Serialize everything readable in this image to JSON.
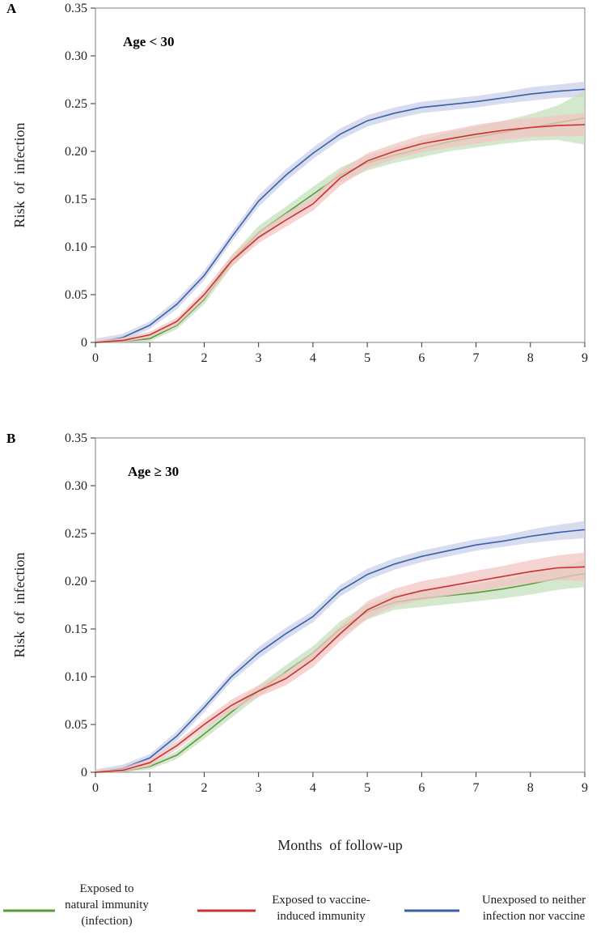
{
  "chart_data": [
    {
      "type": "line",
      "panel_label": "A",
      "annotation": "Age < 30",
      "xlabel": "",
      "ylabel": "Risk  of  infection",
      "xlim": [
        0,
        9
      ],
      "ylim": [
        0,
        0.35
      ],
      "xticks": [
        "0",
        "1",
        "2",
        "3",
        "4",
        "5",
        "6",
        "7",
        "8",
        "9"
      ],
      "yticks": [
        "0",
        "0.05",
        "0.10",
        "0.15",
        "0.20",
        "0.25",
        "0.30",
        "0.35"
      ],
      "x": [
        0,
        0.5,
        1,
        1.5,
        2,
        2.5,
        3,
        3.5,
        4,
        4.5,
        5,
        5.5,
        6,
        6.5,
        7,
        7.5,
        8,
        8.5,
        9
      ],
      "series": [
        {
          "name": "Unexposed to neither infection nor vaccine",
          "color": "#3a5ea8",
          "band": "#c9d2ea",
          "values": [
            0,
            0.005,
            0.018,
            0.04,
            0.07,
            0.11,
            0.148,
            0.175,
            0.198,
            0.218,
            0.232,
            0.24,
            0.246,
            0.249,
            0.252,
            0.256,
            0.26,
            0.263,
            0.265
          ],
          "ci": [
            0.004,
            0.004,
            0.004,
            0.005,
            0.005,
            0.005,
            0.006,
            0.006,
            0.006,
            0.006,
            0.006,
            0.006,
            0.006,
            0.006,
            0.006,
            0.006,
            0.007,
            0.007,
            0.008
          ]
        },
        {
          "name": "Exposed to natural immunity (infection)",
          "color": "#5a9a3a",
          "band": "#c6e0bd",
          "values": [
            0,
            0.001,
            0.004,
            0.018,
            0.045,
            0.085,
            0.115,
            0.135,
            0.155,
            0.175,
            0.188,
            0.196,
            0.203,
            0.21,
            0.215,
            0.22,
            0.225,
            0.23,
            0.235
          ],
          "ci": [
            0.002,
            0.002,
            0.003,
            0.004,
            0.005,
            0.006,
            0.007,
            0.007,
            0.008,
            0.008,
            0.008,
            0.008,
            0.009,
            0.01,
            0.011,
            0.012,
            0.014,
            0.018,
            0.028
          ]
        },
        {
          "name": "Exposed to vaccine-induced immunity",
          "color": "#c83232",
          "band": "#f1c6c3",
          "values": [
            0,
            0.002,
            0.008,
            0.022,
            0.05,
            0.085,
            0.11,
            0.128,
            0.145,
            0.172,
            0.19,
            0.2,
            0.208,
            0.213,
            0.218,
            0.222,
            0.225,
            0.227,
            0.228
          ],
          "ci": [
            0.002,
            0.003,
            0.003,
            0.004,
            0.005,
            0.006,
            0.006,
            0.007,
            0.007,
            0.008,
            0.008,
            0.008,
            0.009,
            0.009,
            0.01,
            0.01,
            0.01,
            0.011,
            0.012
          ]
        }
      ]
    },
    {
      "type": "line",
      "panel_label": "B",
      "annotation": "Age ≥ 30",
      "xlabel": "Months  of follow-up",
      "ylabel": "Risk  of  infection",
      "xlim": [
        0,
        9
      ],
      "ylim": [
        0,
        0.35
      ],
      "xticks": [
        "0",
        "1",
        "2",
        "3",
        "4",
        "5",
        "6",
        "7",
        "8",
        "9"
      ],
      "yticks": [
        "0",
        "0.05",
        "0.10",
        "0.15",
        "0.20",
        "0.25",
        "0.30",
        "0.35"
      ],
      "x": [
        0,
        0.5,
        1,
        1.5,
        2,
        2.5,
        3,
        3.5,
        4,
        4.5,
        5,
        5.5,
        6,
        6.5,
        7,
        7.5,
        8,
        8.5,
        9
      ],
      "series": [
        {
          "name": "Unexposed to neither infection nor vaccine",
          "color": "#3a5ea8",
          "band": "#c9d2ea",
          "values": [
            0,
            0.004,
            0.015,
            0.038,
            0.068,
            0.1,
            0.125,
            0.145,
            0.163,
            0.19,
            0.207,
            0.218,
            0.226,
            0.232,
            0.238,
            0.242,
            0.247,
            0.251,
            0.254
          ],
          "ci": [
            0.003,
            0.004,
            0.004,
            0.005,
            0.005,
            0.005,
            0.006,
            0.006,
            0.006,
            0.006,
            0.006,
            0.006,
            0.006,
            0.006,
            0.006,
            0.006,
            0.007,
            0.008,
            0.009
          ]
        },
        {
          "name": "Exposed to natural immunity (infection)",
          "color": "#5a9a3a",
          "band": "#c6e0bd",
          "values": [
            0,
            0.001,
            0.006,
            0.018,
            0.04,
            0.063,
            0.085,
            0.105,
            0.125,
            0.15,
            0.168,
            0.178,
            0.182,
            0.185,
            0.188,
            0.192,
            0.197,
            0.203,
            0.208
          ],
          "ci": [
            0.002,
            0.002,
            0.003,
            0.004,
            0.005,
            0.006,
            0.006,
            0.007,
            0.007,
            0.008,
            0.008,
            0.008,
            0.009,
            0.009,
            0.009,
            0.01,
            0.011,
            0.012,
            0.014
          ]
        },
        {
          "name": "Exposed to vaccine-induced immunity",
          "color": "#c83232",
          "band": "#f1c6c3",
          "values": [
            0,
            0.002,
            0.01,
            0.028,
            0.05,
            0.07,
            0.085,
            0.098,
            0.118,
            0.145,
            0.17,
            0.183,
            0.19,
            0.195,
            0.2,
            0.205,
            0.21,
            0.214,
            0.215
          ],
          "ci": [
            0.002,
            0.003,
            0.004,
            0.004,
            0.005,
            0.006,
            0.006,
            0.007,
            0.008,
            0.008,
            0.009,
            0.009,
            0.01,
            0.01,
            0.011,
            0.011,
            0.012,
            0.013,
            0.015
          ]
        }
      ]
    }
  ],
  "legend": [
    {
      "label": "Exposed to\nnatural immunity\n(infection)",
      "color": "#5a9a3a"
    },
    {
      "label": "Exposed to vaccine-\ninduced immunity",
      "color": "#c83232"
    },
    {
      "label": "Unexposed to neither\ninfection nor vaccine",
      "color": "#3a5ea8"
    }
  ]
}
